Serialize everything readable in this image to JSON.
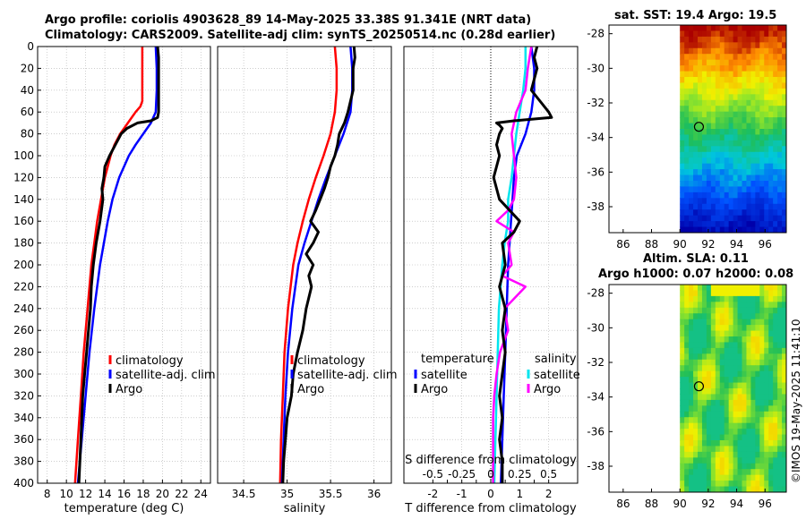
{
  "header": {
    "title_line1": "Argo profile: coriolis 4903628_89 14-May-2025 33.38S 91.341E (NRT data)",
    "title_line2": "Climatology: CARS2009. Satellite-adj clim: synTS_20250514.nc (0.28d earlier)"
  },
  "side": {
    "sst_title": "sat. SST: 19.4 Argo: 19.5",
    "sla_title1": "Altim. SLA: 0.11",
    "sla_title2": "Argo h1000: 0.07 h2000: 0.08",
    "credit": "©IMOS 19-May-2025 11:41:10"
  },
  "colors": {
    "climatology": "#ff0000",
    "satellite": "#0000ff",
    "argo": "#000000",
    "sal_satellite": "#00e5ee",
    "sal_argo": "#ff00ff"
  },
  "chart_data": [
    {
      "type": "line",
      "panel": "temperature",
      "xlabel": "temperature (deg C)",
      "ylabel": "",
      "xlim": [
        7,
        25
      ],
      "ylim": [
        400,
        0
      ],
      "xticks": [
        "8",
        "10",
        "12",
        "14",
        "16",
        "18",
        "20",
        "22",
        "24"
      ],
      "yticks": [
        "0",
        "20",
        "40",
        "60",
        "80",
        "100",
        "120",
        "140",
        "160",
        "180",
        "200",
        "220",
        "240",
        "260",
        "280",
        "300",
        "320",
        "340",
        "360",
        "380",
        "400"
      ],
      "legend": [
        "climatology",
        "satellite-adj. clim",
        "Argo"
      ],
      "series": [
        {
          "name": "climatology",
          "y": [
            0,
            20,
            40,
            50,
            55,
            60,
            70,
            80,
            90,
            100,
            120,
            140,
            160,
            180,
            200,
            240,
            280,
            320,
            360,
            400
          ],
          "x": [
            17.9,
            17.9,
            17.9,
            17.9,
            17.7,
            17.2,
            16.4,
            15.6,
            15.0,
            14.6,
            14.0,
            13.6,
            13.2,
            12.9,
            12.6,
            12.2,
            11.8,
            11.5,
            11.2,
            10.9
          ]
        },
        {
          "name": "satellite-adj. clim",
          "y": [
            0,
            20,
            40,
            60,
            70,
            80,
            90,
            100,
            120,
            140,
            160,
            180,
            200,
            240,
            280,
            320,
            360,
            400
          ],
          "x": [
            19.3,
            19.4,
            19.4,
            19.3,
            18.8,
            18.0,
            17.2,
            16.5,
            15.5,
            14.8,
            14.3,
            13.9,
            13.5,
            12.9,
            12.4,
            12.0,
            11.6,
            11.2
          ]
        },
        {
          "name": "Argo",
          "y": [
            0,
            10,
            20,
            40,
            60,
            65,
            68,
            70,
            75,
            80,
            90,
            100,
            110,
            120,
            130,
            140,
            160,
            180,
            200,
            220,
            240,
            260,
            280,
            300,
            320,
            340,
            360,
            380,
            400
          ],
          "x": [
            19.5,
            19.6,
            19.6,
            19.6,
            19.6,
            19.5,
            18.8,
            17.4,
            16.3,
            15.7,
            15.1,
            14.5,
            14.0,
            13.9,
            13.7,
            13.8,
            13.5,
            13.1,
            12.8,
            12.6,
            12.5,
            12.3,
            12.1,
            11.9,
            11.7,
            11.6,
            11.5,
            11.4,
            11.3
          ]
        }
      ]
    },
    {
      "type": "line",
      "panel": "salinity",
      "xlabel": "salinity",
      "xlim": [
        34.2,
        36.2
      ],
      "ylim": [
        400,
        0
      ],
      "xticks": [
        "34.5",
        "35",
        "35.5",
        "36"
      ],
      "legend": [
        "climatology",
        "satellite-adj. clim",
        "Argo"
      ],
      "series": [
        {
          "name": "climatology",
          "y": [
            0,
            20,
            40,
            60,
            80,
            100,
            120,
            140,
            160,
            180,
            200,
            240,
            280,
            320,
            360,
            400
          ],
          "x": [
            35.55,
            35.57,
            35.57,
            35.55,
            35.5,
            35.42,
            35.33,
            35.25,
            35.18,
            35.12,
            35.07,
            35.01,
            34.97,
            34.95,
            34.93,
            34.92
          ]
        },
        {
          "name": "satellite-adj. clim",
          "y": [
            0,
            20,
            40,
            60,
            80,
            100,
            120,
            140,
            160,
            180,
            200,
            240,
            280,
            320,
            360,
            400
          ],
          "x": [
            35.73,
            35.75,
            35.75,
            35.73,
            35.65,
            35.55,
            35.45,
            35.36,
            35.28,
            35.2,
            35.13,
            35.06,
            35.01,
            34.98,
            34.96,
            34.94
          ]
        },
        {
          "name": "Argo",
          "y": [
            0,
            10,
            20,
            40,
            60,
            70,
            80,
            90,
            100,
            110,
            120,
            130,
            140,
            150,
            160,
            170,
            180,
            190,
            200,
            210,
            220,
            240,
            260,
            280,
            300,
            320,
            340,
            360,
            380,
            400
          ],
          "x": [
            35.77,
            35.78,
            35.76,
            35.76,
            35.7,
            35.66,
            35.6,
            35.58,
            35.55,
            35.5,
            35.47,
            35.43,
            35.38,
            35.33,
            35.27,
            35.36,
            35.3,
            35.22,
            35.3,
            35.25,
            35.28,
            35.22,
            35.18,
            35.12,
            35.07,
            35.05,
            35.0,
            34.98,
            34.96,
            34.95
          ]
        }
      ]
    },
    {
      "type": "line",
      "panel": "difference",
      "xlabel": "T difference from climatology",
      "top_label": "S difference from climatology",
      "xlim": [
        -3,
        3
      ],
      "ylim": [
        400,
        0
      ],
      "xticks": [
        "-2",
        "-1.5",
        "-1",
        "-0.5",
        "0",
        "0.5",
        "1",
        "1.5",
        "2"
      ],
      "sticks": [
        "-0.5",
        "-0.25",
        "0",
        "0.25",
        "0.5"
      ],
      "legend_left_title": "temperature",
      "legend_left": [
        "satellite",
        "Argo"
      ],
      "legend_right_title": "salinity",
      "legend_right": [
        "satellite",
        "Argo"
      ],
      "series": [
        {
          "name": "temperature satellite",
          "y": [
            0,
            20,
            40,
            60,
            80,
            100,
            120,
            140,
            160,
            180,
            200,
            240,
            280,
            320,
            360,
            400
          ],
          "x": [
            1.4,
            1.5,
            1.5,
            1.4,
            1.2,
            0.9,
            0.8,
            0.75,
            0.7,
            0.65,
            0.6,
            0.55,
            0.5,
            0.45,
            0.4,
            0.35
          ]
        },
        {
          "name": "temperature Argo",
          "y": [
            0,
            10,
            20,
            40,
            50,
            60,
            65,
            68,
            70,
            72,
            75,
            80,
            90,
            100,
            120,
            140,
            160,
            170,
            180,
            200,
            220,
            240,
            260,
            280,
            300,
            320,
            340,
            360,
            380,
            400
          ],
          "x": [
            1.6,
            1.5,
            1.6,
            1.4,
            1.7,
            2.0,
            2.1,
            0.8,
            0.2,
            0.3,
            0.4,
            0.3,
            0.2,
            0.3,
            0.1,
            0.3,
            1.0,
            0.8,
            0.4,
            0.5,
            0.3,
            0.5,
            0.4,
            0.5,
            0.4,
            0.3,
            0.4,
            0.3,
            0.4,
            0.4
          ]
        },
        {
          "name": "salinity satellite",
          "y": [
            0,
            20,
            40,
            60,
            80,
            100,
            120,
            140,
            160,
            180,
            200,
            240,
            280,
            320,
            360,
            400
          ],
          "x": [
            0.3,
            0.3,
            0.28,
            0.25,
            0.22,
            0.2,
            0.18,
            0.15,
            0.15,
            0.12,
            0.1,
            0.07,
            0.06,
            0.05,
            0.04,
            0.03
          ]
        },
        {
          "name": "salinity Argo",
          "y": [
            0,
            20,
            40,
            60,
            80,
            100,
            120,
            140,
            150,
            160,
            170,
            180,
            200,
            210,
            220,
            240,
            260,
            280,
            300,
            320,
            340,
            360,
            380,
            400
          ],
          "x": [
            0.35,
            0.32,
            0.3,
            0.22,
            0.18,
            0.2,
            0.22,
            0.2,
            0.15,
            0.05,
            0.2,
            0.15,
            0.18,
            0.1,
            0.3,
            0.12,
            0.15,
            0.08,
            0.05,
            0.03,
            0.02,
            0.02,
            0.02,
            0.02
          ]
        }
      ]
    },
    {
      "type": "heatmap",
      "panel": "sst-map",
      "title": "sat. SST: 19.4 Argo: 19.5",
      "xticks": [
        "86",
        "88",
        "90",
        "92",
        "94",
        "96"
      ],
      "yticks": [
        "-28",
        "-30",
        "-32",
        "-34",
        "-36",
        "-38"
      ],
      "xlim": [
        85,
        97.5
      ],
      "ylim": [
        -39.5,
        -27.5
      ],
      "data_lon_range": [
        90,
        97.5
      ],
      "argo_position": {
        "lon": 91.34,
        "lat": -33.38
      }
    },
    {
      "type": "heatmap",
      "panel": "sla-map",
      "title": "Altim. SLA: 0.11",
      "xticks": [
        "86",
        "88",
        "90",
        "92",
        "94",
        "96"
      ],
      "yticks": [
        "-28",
        "-30",
        "-32",
        "-34",
        "-36",
        "-38"
      ],
      "xlim": [
        85,
        97.5
      ],
      "ylim": [
        -39.5,
        -27.5
      ],
      "data_lon_range": [
        90,
        97.5
      ],
      "argo_position": {
        "lon": 91.34,
        "lat": -33.38
      }
    }
  ]
}
